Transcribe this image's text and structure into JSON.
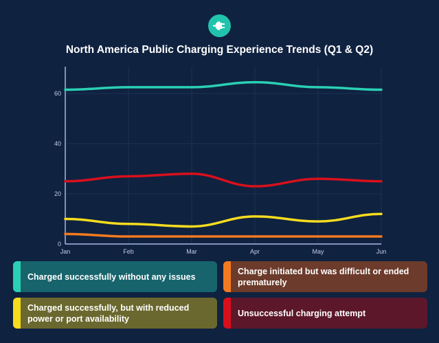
{
  "header": {
    "icon": "ev-plug-icon"
  },
  "chart_data": {
    "type": "line",
    "title": "North America Public Charging Experience Trends (Q1 & Q2)",
    "xlabel": "",
    "ylabel": "",
    "categories": [
      "Jan",
      "Feb",
      "Mar",
      "Apr",
      "May",
      "Jun"
    ],
    "ylim": [
      0,
      70
    ],
    "yticks": [
      0,
      20,
      40,
      60
    ],
    "grid": true,
    "legend_position": "bottom",
    "series": [
      {
        "name": "Charged successfully without any issues",
        "color": "#2ad0b4",
        "bg": "#17646c",
        "values": [
          61.5,
          62.5,
          62.5,
          64.5,
          62.5,
          61.5
        ]
      },
      {
        "name": "Charge initiated but was difficult or ended prematurely",
        "color": "#f47a1f",
        "bg": "#6c3b2b",
        "values": [
          4,
          3,
          3,
          3,
          3,
          3
        ]
      },
      {
        "name": "Charged successfully, but with reduced power or port availability",
        "color": "#f7dc1e",
        "bg": "#6a682e",
        "values": [
          10,
          8,
          7,
          11,
          9,
          12
        ]
      },
      {
        "name": "Unsuccessful charging attempt",
        "color": "#d8101c",
        "bg": "#5c172b",
        "values": [
          25,
          27,
          28,
          23,
          26,
          25
        ]
      }
    ]
  }
}
